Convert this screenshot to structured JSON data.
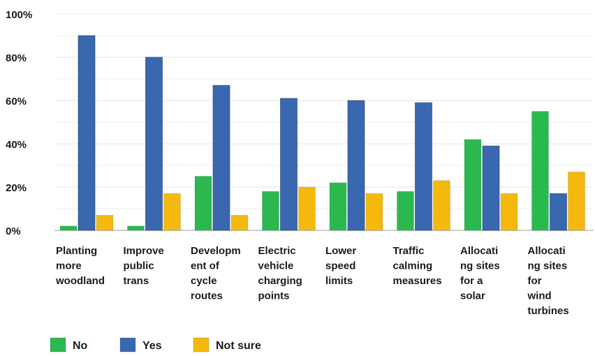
{
  "chart_data": {
    "type": "bar",
    "title": "",
    "xlabel": "",
    "ylabel": "",
    "ylim": [
      0,
      100
    ],
    "y_ticks": [
      "0%",
      "20%",
      "40%",
      "60%",
      "80%",
      "100%"
    ],
    "y_tick_values": [
      0,
      20,
      40,
      60,
      80,
      100
    ],
    "grid": true,
    "legend_position": "bottom-left",
    "categories": [
      [
        "Planting",
        "more",
        "woodland"
      ],
      [
        "Improve",
        "public",
        "trans"
      ],
      [
        "Developm",
        "ent of",
        "cycle",
        "routes"
      ],
      [
        "Electric",
        "vehicle",
        "charging",
        "points"
      ],
      [
        "Lower",
        "speed",
        "limits"
      ],
      [
        "Traffic",
        "calming",
        "measures"
      ],
      [
        "Allocati",
        "ng sites",
        "for a",
        "solar"
      ],
      [
        "Allocati",
        "ng sites",
        "for",
        "wind",
        "turbines"
      ]
    ],
    "series": [
      {
        "name": "No",
        "color": "#2bb94f",
        "values": [
          2,
          2,
          25,
          18,
          22,
          18,
          42,
          55
        ]
      },
      {
        "name": "Yes",
        "color": "#3a68b0",
        "values": [
          90,
          80,
          67,
          61,
          60,
          59,
          39,
          17
        ]
      },
      {
        "name": "Not sure",
        "color": "#f5b90d",
        "values": [
          7,
          17,
          7,
          20,
          17,
          23,
          17,
          27
        ]
      }
    ]
  }
}
